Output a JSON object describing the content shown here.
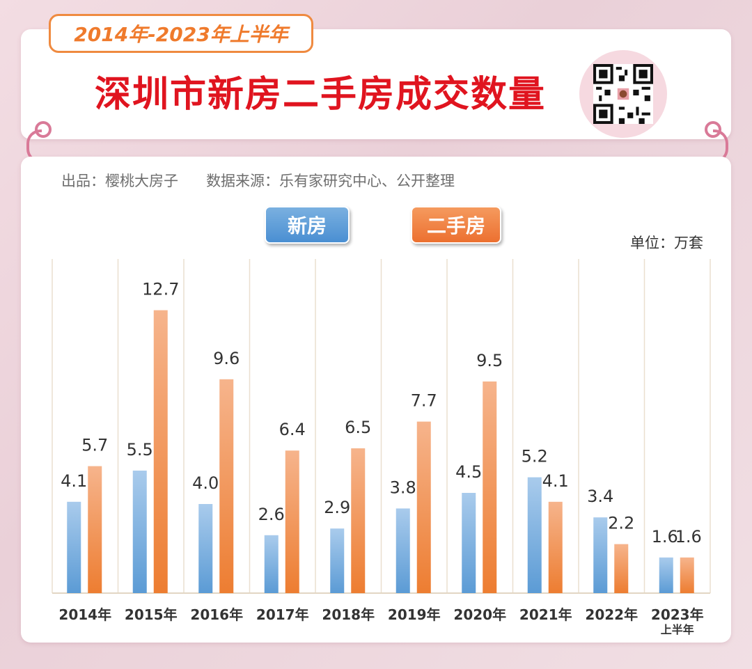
{
  "header": {
    "period": "2014年-2023年上半年",
    "title": "深圳市新房二手房成交数量"
  },
  "credits": {
    "producer": "出品：樱桃大房子",
    "source": "数据来源：乐有家研究中心、公开整理"
  },
  "colors": {
    "new": "#5b9bd5",
    "second": "#ed7d31",
    "title": "#e0141f",
    "tag": "#ef7a2c"
  },
  "chart_data": {
    "type": "bar",
    "unit": "单位：万套",
    "categories": [
      "2014年",
      "2015年",
      "2016年",
      "2017年",
      "2018年",
      "2019年",
      "2020年",
      "2021年",
      "2022年",
      "2023年"
    ],
    "category_sublabels": [
      "",
      "",
      "",
      "",
      "",
      "",
      "",
      "",
      "",
      "上半年"
    ],
    "series": [
      {
        "name": "新房",
        "values": [
          4.1,
          5.5,
          4.0,
          2.6,
          2.9,
          3.8,
          4.5,
          5.2,
          3.4,
          1.6
        ]
      },
      {
        "name": "二手房",
        "values": [
          5.7,
          12.7,
          9.6,
          6.4,
          6.5,
          7.7,
          9.5,
          4.1,
          2.2,
          1.6
        ]
      }
    ],
    "ylim": [
      0,
      15
    ],
    "grid": "vertical"
  }
}
